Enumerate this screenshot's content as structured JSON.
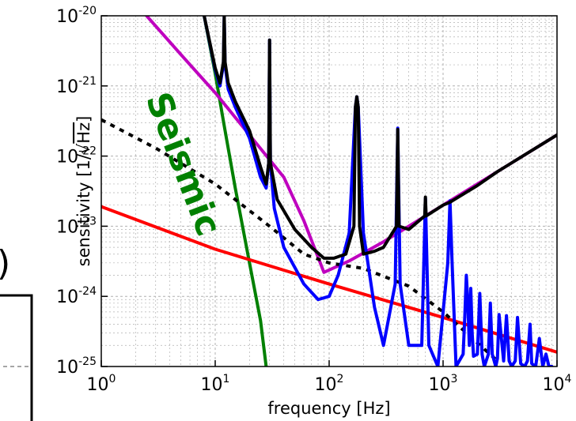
{
  "chart_data": {
    "type": "line",
    "title": "",
    "xlabel": "frequency [Hz]",
    "ylabel_prefix": "sensitivity [1/",
    "ylabel_radicand": "Hz",
    "ylabel_suffix": "]",
    "x_scale": "log",
    "y_scale": "log",
    "xlim": [
      1,
      10000
    ],
    "ylim": [
      1e-25,
      1e-20
    ],
    "grid": true,
    "legend": "none",
    "x_ticks": [
      {
        "base": "10",
        "exp": "0",
        "value": 1
      },
      {
        "base": "10",
        "exp": "1",
        "value": 10
      },
      {
        "base": "10",
        "exp": "2",
        "value": 100
      },
      {
        "base": "10",
        "exp": "3",
        "value": 1000
      },
      {
        "base": "10",
        "exp": "4",
        "value": 10000
      }
    ],
    "y_ticks": [
      {
        "base": "10",
        "exp": "-20",
        "value": 1e-20
      },
      {
        "base": "10",
        "exp": "-21",
        "value": 1e-21
      },
      {
        "base": "10",
        "exp": "-22",
        "value": 1e-22
      },
      {
        "base": "10",
        "exp": "-23",
        "value": 1e-23
      },
      {
        "base": "10",
        "exp": "-24",
        "value": 1e-24
      },
      {
        "base": "10",
        "exp": "-25",
        "value": 1e-25
      }
    ],
    "annotations": [
      {
        "text": "Seismic",
        "color": "#008000"
      }
    ],
    "series": [
      {
        "color": "#008000",
        "style": "solid",
        "x": [
          8,
          10,
          12,
          15,
          20,
          25,
          28
        ],
        "y": [
          1e-20,
          1.5e-21,
          2.7e-22,
          3.5e-23,
          3e-24,
          4.5e-25,
          1e-25
        ]
      },
      {
        "color": "#bf00bf",
        "style": "solid",
        "x": [
          2.5,
          5,
          10,
          20,
          40,
          60,
          90,
          150,
          300,
          1000,
          3000,
          10000
        ],
        "y": [
          1e-20,
          2.8e-21,
          8e-22,
          2e-22,
          5e-23,
          1.2e-23,
          2.2e-24,
          3.2e-24,
          6e-24,
          2e-23,
          6e-23,
          2e-22
        ]
      },
      {
        "color": "#ff0000",
        "style": "solid",
        "x": [
          1,
          10,
          100,
          1000,
          10000
        ],
        "y": [
          1.9e-23,
          4.7e-24,
          1.5e-24,
          5e-25,
          1.6e-25
        ]
      },
      {
        "color": "#000000",
        "style": "dotted",
        "x": [
          1,
          3,
          10,
          30,
          60,
          100,
          200,
          500,
          1000,
          3000
        ],
        "y": [
          3.3e-22,
          1.3e-22,
          4e-23,
          1e-23,
          4e-24,
          3e-24,
          2.5e-24,
          1.4e-24,
          6e-25,
          1.2e-25
        ]
      },
      {
        "color": "#0000ff",
        "style": "solid",
        "x": [
          8,
          10,
          11,
          11.8,
          12,
          12.2,
          13,
          15,
          20,
          25,
          28,
          29.5,
          30,
          30.5,
          33,
          40,
          60,
          80,
          100,
          120,
          150,
          170,
          175,
          180,
          200,
          250,
          300,
          380,
          400,
          420,
          500,
          650,
          700,
          750,
          900,
          1100,
          1150,
          1200,
          1300,
          1500,
          1550,
          1600,
          1650,
          1700,
          1750,
          1800,
          1850,
          2000,
          2100,
          2200,
          2300,
          2500,
          2600,
          2700,
          2900,
          3000,
          3100,
          3400,
          3600,
          3800,
          4000,
          4300,
          4500,
          4800,
          5200,
          5500,
          5800,
          6000,
          6500,
          7000,
          7500,
          8000,
          8500,
          9000
        ],
        "y": [
          1e-20,
          1.7e-21,
          1e-21,
          2e-21,
          1e-20,
          2e-21,
          9e-22,
          5e-22,
          1.8e-22,
          5e-23,
          3.5e-23,
          8e-23,
          4.5e-21,
          8e-23,
          1.8e-23,
          5e-24,
          1.5e-24,
          9e-25,
          1e-24,
          2e-24,
          8e-24,
          5e-22,
          7e-22,
          5e-22,
          8e-24,
          7e-25,
          2e-25,
          1.5e-24,
          2.5e-22,
          1.5e-24,
          2e-25,
          2e-25,
          2.5e-23,
          2e-25,
          1e-25,
          3e-24,
          2.3e-23,
          3e-24,
          1e-25,
          1.5e-25,
          5e-25,
          2e-24,
          8e-25,
          2e-25,
          1.3e-24,
          3e-25,
          1.4e-25,
          1.5e-25,
          1.1e-24,
          1.5e-25,
          1e-25,
          1.5e-25,
          8e-25,
          1.5e-25,
          1e-25,
          1.3e-25,
          5.5e-25,
          1.2e-25,
          5.3e-25,
          1.2e-25,
          1e-25,
          1.2e-25,
          5e-25,
          1.1e-25,
          1e-25,
          1.2e-25,
          4e-25,
          1.1e-25,
          1e-25,
          2.5e-25,
          1e-25,
          1.5e-25,
          1e-25,
          1e-25
        ]
      },
      {
        "color": "#000000",
        "style": "solid",
        "x": [
          8,
          10,
          11,
          11.8,
          12,
          12.2,
          13,
          15,
          20,
          25,
          28,
          29.5,
          30,
          30.5,
          35,
          50,
          70,
          90,
          110,
          140,
          165,
          170,
          175,
          180,
          185,
          200,
          250,
          300,
          390,
          400,
          410,
          500,
          690,
          700,
          710,
          1000,
          1150,
          2000,
          3000,
          5000,
          7000,
          10000
        ],
        "y": [
          1e-20,
          1.8e-21,
          1.1e-21,
          2.2e-21,
          1e-20,
          2.2e-21,
          1.1e-21,
          6e-22,
          2.3e-22,
          7e-23,
          4e-23,
          8e-23,
          4.5e-21,
          8e-23,
          2.4e-23,
          9e-24,
          5e-24,
          3.5e-24,
          3.5e-24,
          4e-24,
          1e-23,
          5e-22,
          7e-22,
          5e-22,
          1e-23,
          4e-24,
          4.4e-24,
          5e-24,
          1e-23,
          2.4e-22,
          1e-23,
          9e-24,
          1.4e-23,
          2.6e-23,
          1.4e-23,
          2e-23,
          2.2e-23,
          3.8e-23,
          6e-23,
          1e-22,
          1.4e-22,
          2e-22
        ]
      }
    ]
  }
}
